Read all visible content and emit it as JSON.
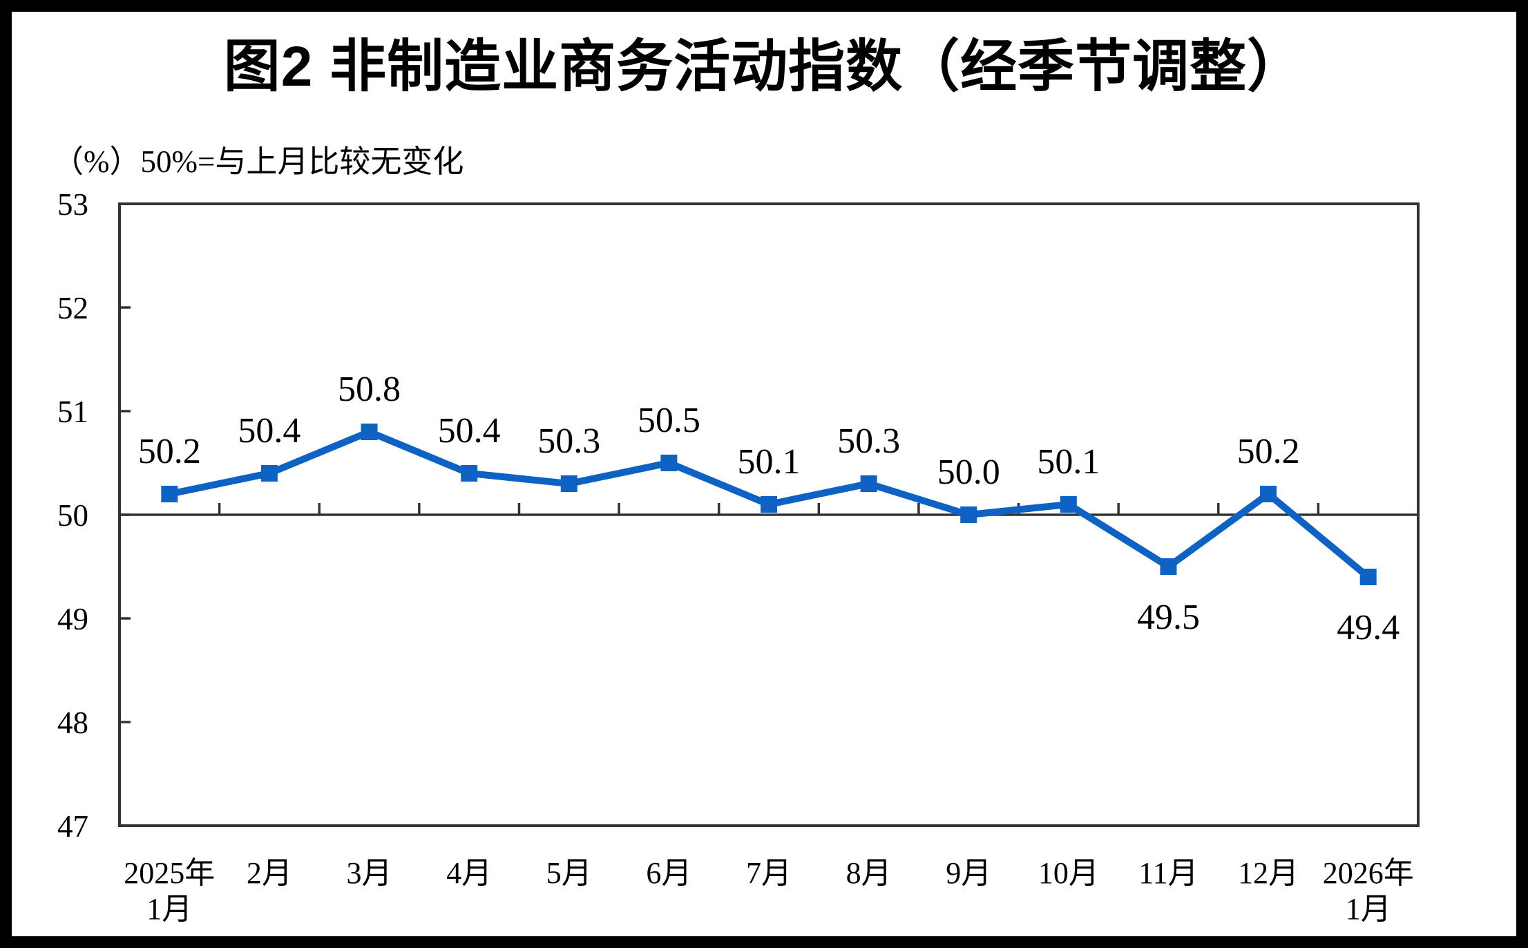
{
  "page": {
    "background_color": "#ffffff",
    "frame_color": "#000000"
  },
  "chart_data": {
    "type": "line",
    "title": "图2  非制造业商务活动指数（经季节调整）",
    "unit_note": "（%）50%=与上月比较无变化",
    "categories": [
      "2025年\n1月",
      "2月",
      "3月",
      "4月",
      "5月",
      "6月",
      "7月",
      "8月",
      "9月",
      "10月",
      "11月",
      "12月",
      "2026年\n1月"
    ],
    "values": [
      50.2,
      50.4,
      50.8,
      50.4,
      50.3,
      50.5,
      50.1,
      50.3,
      50.0,
      50.1,
      49.5,
      50.2,
      49.4
    ],
    "value_labels": [
      "50.2",
      "50.4",
      "50.8",
      "50.4",
      "50.3",
      "50.5",
      "50.1",
      "50.3",
      "50.0",
      "50.1",
      "49.5",
      "50.2",
      "49.4"
    ],
    "labels_below_indices": [
      10,
      12
    ],
    "ylim": [
      47,
      53
    ],
    "yticks": [
      47,
      48,
      49,
      50,
      51,
      52,
      53
    ],
    "reference_line": 50,
    "xlabel": "",
    "ylabel": "",
    "grid": "off",
    "legend": "none",
    "marker": "square",
    "series_color": "#0E62C4",
    "axis_color": "#333333",
    "text_color": "#000000"
  }
}
